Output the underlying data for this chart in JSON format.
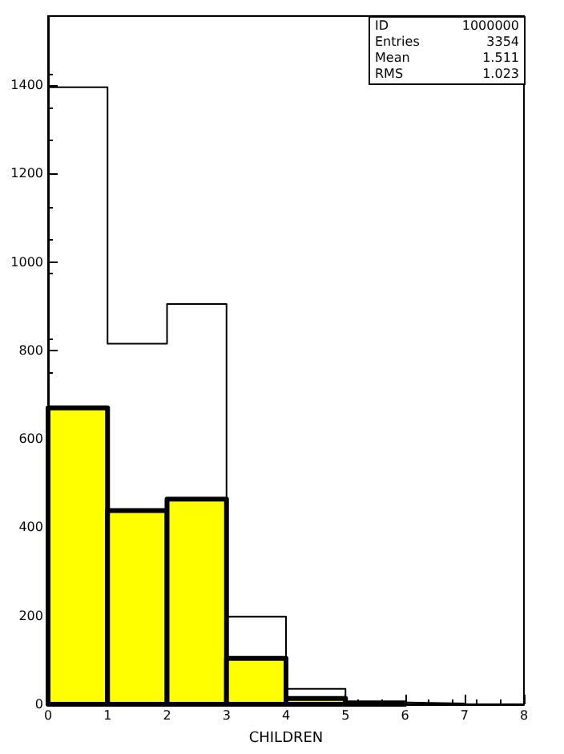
{
  "chart_data": {
    "type": "histogram",
    "xlabel": "CHILDREN",
    "bins": [
      0,
      1,
      2,
      3,
      4,
      5,
      6,
      7,
      8
    ],
    "series": [
      {
        "type": "step",
        "color": "#000000",
        "x": [
          0,
          1,
          2,
          3,
          4,
          5,
          6,
          7
        ],
        "values": [
          1395,
          815,
          905,
          198,
          35,
          4,
          2,
          0
        ]
      },
      {
        "color": "#ffff00",
        "values": [
          670,
          438,
          464,
          104,
          13,
          3,
          0,
          0
        ]
      }
    ],
    "xlim": [
      0,
      8
    ],
    "xticks": [
      0,
      1,
      2,
      3,
      4,
      5,
      6,
      7,
      8
    ],
    "ylim": [
      0,
      1556
    ],
    "yticks": [
      0,
      200,
      400,
      600,
      800,
      1000,
      1200,
      1400
    ],
    "grid": false,
    "annotations": [
      "ID",
      "1000000",
      "Entries",
      "3354",
      "Mean",
      "1.511",
      "RMS",
      "1.023"
    ]
  }
}
